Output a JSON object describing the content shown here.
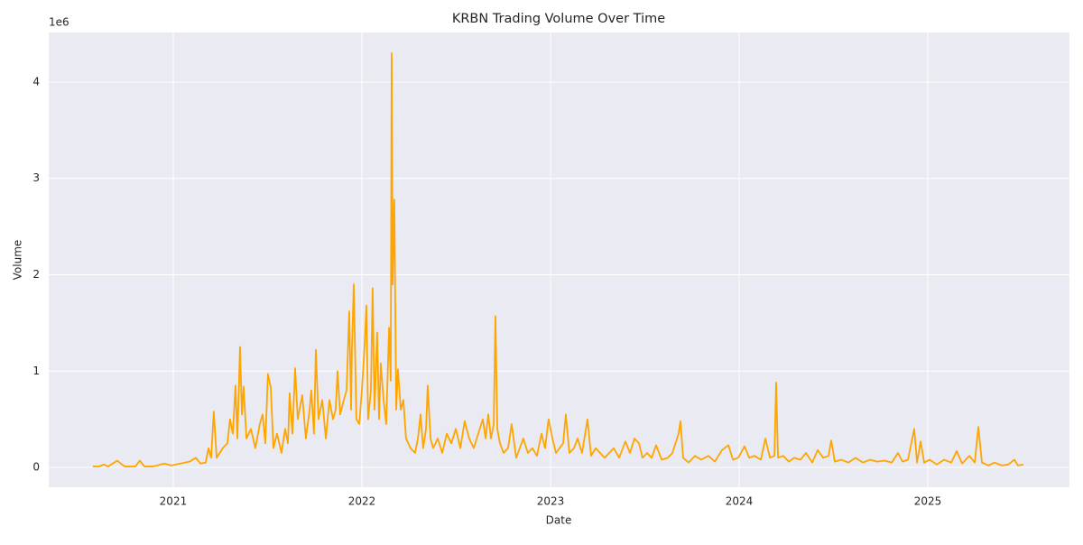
{
  "chart_data": {
    "type": "line",
    "title": "KRBN Trading Volume Over Time",
    "x_label": "Date",
    "y_label": "Volume",
    "y_offset_label": "1e6",
    "x": [
      2020.574,
      2020.608,
      2020.632,
      2020.655,
      2020.703,
      2020.742,
      2020.799,
      2020.823,
      2020.847,
      2020.895,
      2020.952,
      2020.99,
      2021.038,
      2021.086,
      2021.12,
      2021.144,
      2021.172,
      2021.187,
      2021.201,
      2021.215,
      2021.23,
      2021.263,
      2021.287,
      2021.301,
      2021.316,
      2021.33,
      2021.34,
      2021.354,
      2021.364,
      2021.373,
      2021.388,
      2021.412,
      2021.435,
      2021.459,
      2021.474,
      2021.488,
      2021.502,
      2021.517,
      2021.531,
      2021.55,
      2021.574,
      2021.593,
      2021.608,
      2021.617,
      2021.632,
      2021.646,
      2021.66,
      2021.684,
      2021.703,
      2021.723,
      2021.732,
      2021.746,
      2021.756,
      2021.77,
      2021.79,
      2021.809,
      2021.828,
      2021.847,
      2021.861,
      2021.871,
      2021.885,
      2021.904,
      2021.919,
      2021.933,
      2021.943,
      2021.947,
      2021.957,
      2021.971,
      2021.986,
      2022.0,
      2022.014,
      2022.024,
      2022.033,
      2022.048,
      2022.057,
      2022.067,
      2022.081,
      2022.091,
      2022.1,
      2022.115,
      2022.129,
      2022.144,
      2022.153,
      2022.158,
      2022.163,
      2022.172,
      2022.182,
      2022.191,
      2022.206,
      2022.22,
      2022.234,
      2022.258,
      2022.282,
      2022.297,
      2022.311,
      2022.325,
      2022.34,
      2022.349,
      2022.364,
      2022.378,
      2022.402,
      2022.426,
      2022.45,
      2022.474,
      2022.498,
      2022.522,
      2022.545,
      2022.569,
      2022.593,
      2022.617,
      2022.641,
      2022.656,
      2022.67,
      2022.684,
      2022.699,
      2022.708,
      2022.718,
      2022.732,
      2022.751,
      2022.775,
      2022.794,
      2022.818,
      2022.837,
      2022.856,
      2022.88,
      2022.904,
      2022.928,
      2022.952,
      2022.971,
      2022.99,
      2023.01,
      2023.029,
      2023.048,
      2023.067,
      2023.081,
      2023.1,
      2023.124,
      2023.144,
      2023.167,
      2023.196,
      2023.215,
      2023.239,
      2023.263,
      2023.287,
      2023.311,
      2023.335,
      2023.364,
      2023.397,
      2023.421,
      2023.445,
      2023.469,
      2023.488,
      2023.512,
      2023.536,
      2023.56,
      2023.589,
      2023.622,
      2023.646,
      2023.679,
      2023.689,
      2023.703,
      2023.732,
      2023.766,
      2023.799,
      2023.837,
      2023.871,
      2023.909,
      2023.943,
      2023.967,
      2023.995,
      2024.029,
      2024.053,
      2024.081,
      2024.115,
      2024.139,
      2024.163,
      2024.187,
      2024.196,
      2024.206,
      2024.234,
      2024.263,
      2024.292,
      2024.325,
      2024.354,
      2024.388,
      2024.416,
      2024.445,
      2024.474,
      2024.488,
      2024.507,
      2024.541,
      2024.579,
      2024.617,
      2024.656,
      2024.694,
      2024.732,
      2024.77,
      2024.809,
      2024.842,
      2024.866,
      2024.895,
      2024.928,
      2024.943,
      2024.962,
      2024.981,
      2025.01,
      2025.048,
      2025.086,
      2025.124,
      2025.153,
      2025.182,
      2025.22,
      2025.249,
      2025.268,
      2025.287,
      2025.321,
      2025.354,
      2025.392,
      2025.426,
      2025.459,
      2025.478,
      2025.507
    ],
    "series": [
      {
        "name": "Volume",
        "color": "#ffa500",
        "values": [
          0.01,
          0.01,
          0.03,
          0.01,
          0.07,
          0.01,
          0.01,
          0.07,
          0.01,
          0.01,
          0.04,
          0.02,
          0.04,
          0.06,
          0.1,
          0.04,
          0.05,
          0.2,
          0.1,
          0.58,
          0.1,
          0.2,
          0.25,
          0.5,
          0.35,
          0.85,
          0.3,
          1.25,
          0.55,
          0.84,
          0.3,
          0.4,
          0.2,
          0.45,
          0.55,
          0.25,
          0.97,
          0.83,
          0.2,
          0.35,
          0.15,
          0.4,
          0.25,
          0.77,
          0.35,
          1.03,
          0.5,
          0.75,
          0.3,
          0.6,
          0.8,
          0.35,
          1.22,
          0.5,
          0.7,
          0.3,
          0.7,
          0.5,
          0.6,
          1.0,
          0.55,
          0.7,
          0.8,
          1.62,
          0.6,
          1.2,
          1.9,
          0.5,
          0.45,
          0.8,
          1.25,
          1.68,
          0.5,
          0.8,
          1.86,
          0.6,
          1.4,
          0.5,
          1.08,
          0.7,
          0.45,
          1.45,
          0.9,
          4.3,
          1.9,
          2.78,
          0.6,
          1.02,
          0.6,
          0.7,
          0.3,
          0.2,
          0.15,
          0.3,
          0.55,
          0.2,
          0.4,
          0.85,
          0.3,
          0.2,
          0.3,
          0.15,
          0.35,
          0.25,
          0.4,
          0.2,
          0.48,
          0.3,
          0.2,
          0.35,
          0.5,
          0.3,
          0.55,
          0.3,
          0.45,
          1.57,
          0.4,
          0.25,
          0.15,
          0.2,
          0.45,
          0.1,
          0.2,
          0.3,
          0.15,
          0.2,
          0.12,
          0.35,
          0.2,
          0.5,
          0.3,
          0.15,
          0.2,
          0.25,
          0.55,
          0.15,
          0.2,
          0.3,
          0.15,
          0.5,
          0.12,
          0.2,
          0.15,
          0.1,
          0.15,
          0.2,
          0.1,
          0.27,
          0.15,
          0.3,
          0.25,
          0.1,
          0.15,
          0.1,
          0.23,
          0.08,
          0.1,
          0.15,
          0.35,
          0.48,
          0.1,
          0.05,
          0.12,
          0.08,
          0.12,
          0.06,
          0.18,
          0.23,
          0.08,
          0.1,
          0.22,
          0.1,
          0.12,
          0.08,
          0.3,
          0.1,
          0.12,
          0.88,
          0.1,
          0.12,
          0.06,
          0.1,
          0.08,
          0.15,
          0.05,
          0.18,
          0.1,
          0.12,
          0.28,
          0.06,
          0.08,
          0.05,
          0.1,
          0.05,
          0.08,
          0.06,
          0.07,
          0.05,
          0.15,
          0.06,
          0.08,
          0.4,
          0.05,
          0.27,
          0.05,
          0.08,
          0.03,
          0.08,
          0.05,
          0.17,
          0.04,
          0.12,
          0.05,
          0.42,
          0.05,
          0.02,
          0.05,
          0.02,
          0.03,
          0.08,
          0.02,
          0.03
        ]
      }
    ],
    "xlim": [
      2020.34,
      2025.751
    ],
    "xticks": [
      2021,
      2022,
      2023,
      2024,
      2025
    ],
    "ylim": [
      -0.206,
      4.515
    ],
    "yticks": [
      0,
      1,
      2,
      3,
      4
    ],
    "grid": true
  }
}
